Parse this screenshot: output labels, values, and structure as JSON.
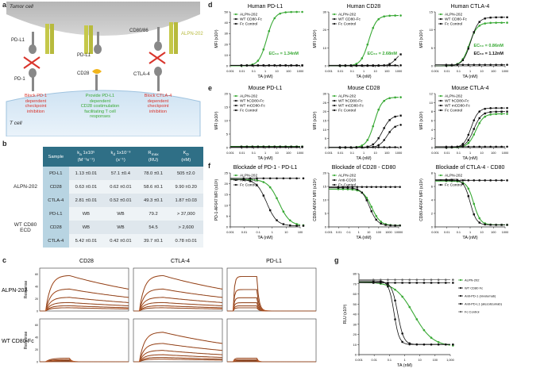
{
  "panel_letters": {
    "a": "a",
    "b": "b",
    "c": "c",
    "d": "d",
    "e": "e",
    "f": "f",
    "g": "g"
  },
  "panel_a": {
    "tumor_cell": "Tumor cell",
    "t_cell": "T cell",
    "pdl1_left": "PD-L1",
    "pd1": "PD-1",
    "pdl1_mid": "PD-L1",
    "cd28": "CD28",
    "cd8086": "CD80/86",
    "ctla4": "CTLA-4",
    "alpn202": "ALPN-202",
    "caption_left": [
      "Block PD-1",
      "dependent",
      "checkpoint",
      "inhibition"
    ],
    "caption_mid": [
      "Provide PD-L1",
      "dependent",
      "CD28 costimulation",
      "facilitating T cell",
      "responses"
    ],
    "caption_right": [
      "Block CTLA-4",
      "dependent",
      "checkpoint",
      "inhibition"
    ]
  },
  "panel_b": {
    "headers": [
      "Sample",
      "ka 1x10^5 (M-1s-1)",
      "kd 1x10^-3 (s-1)",
      "Rmax (RU)",
      "KD (nM)"
    ],
    "header_main": [
      "",
      "k",
      "k",
      "R",
      "K"
    ],
    "header_sub": [
      "",
      "a",
      "d",
      "max",
      "D"
    ],
    "header_extra": [
      "Sample",
      "1x10⁵",
      "1x10⁻³",
      "",
      ""
    ],
    "header_unit": [
      "",
      "(M⁻¹s⁻¹)",
      "(s⁻¹)",
      "(RU)",
      "(nM)"
    ],
    "groups": [
      {
        "name": "ALPN-202",
        "rows": [
          [
            "PD-L1",
            "1.13 ±0.01",
            "57.1 ±0.4",
            "78.0 ±0.1",
            "505 ±2.0"
          ],
          [
            "CD28",
            "0.63 ±0.01",
            "0.62 ±0.01",
            "58.6 ±0.1",
            "9.90 ±0.20"
          ],
          [
            "CTLA-4",
            "2.81 ±0.01",
            "0.52 ±0.01",
            "49.3 ±0.1",
            "1.87 ±0.03"
          ]
        ]
      },
      {
        "name_lines": [
          "WT CD80",
          "ECD"
        ],
        "rows": [
          [
            "PD-L1",
            "WB",
            "WB",
            "79.2",
            "> 37,000"
          ],
          [
            "CD28",
            "WB",
            "WB",
            "54.5",
            "> 2,600"
          ],
          [
            "CTLA-4",
            "5.42 ±0.01",
            "0.42 ±0.01",
            "39.7 ±0.1",
            "0.78 ±0.01"
          ]
        ]
      }
    ]
  },
  "panel_c": {
    "col_titles": [
      "CD28",
      "CTLA-4",
      "PD-L1"
    ],
    "row_titles": [
      "ALPN-202",
      "WT CD80-Fc"
    ],
    "ylabel": "Response",
    "yticks": [
      "0",
      "10",
      "20",
      "30",
      "40",
      "50",
      "60",
      "70"
    ],
    "xticks": [
      "0",
      "100",
      "200",
      "300",
      "400",
      "500",
      "600",
      "700",
      "800",
      "900"
    ]
  },
  "colors": {
    "green": "#39a935",
    "black": "#111111",
    "gray": "#666666",
    "orange": "#e0682b",
    "tableHead": "#2f6f86",
    "tableRowA": "#dfe7ed",
    "tableRowB": "#eef3f6",
    "cellFill": "#b8d4e2"
  },
  "chart_data": [
    {
      "id": "d1",
      "type": "line",
      "title": "Human PD-L1",
      "xlabel": "TA (nM)",
      "ylabel": "MFI (x10³)",
      "xscale": "log",
      "xticks": [
        "0.001",
        "0.01",
        "0.1",
        "1",
        "10",
        "100",
        "1000"
      ],
      "yticks": [
        "0",
        "10",
        "20",
        "30",
        "40",
        "50"
      ],
      "ylim": [
        0,
        50
      ],
      "legend": [
        "ALPN-202",
        "WT CD80-Fc",
        "Fc Control"
      ],
      "annotations": [
        {
          "text": "EC₅₀ = 1.34nM",
          "color": "green"
        }
      ],
      "series": [
        {
          "name": "ALPN-202",
          "ec50": 1.34,
          "top": 50,
          "hill": 1.3,
          "color": "green"
        },
        {
          "name": "WT CD80-Fc",
          "flat": 0.5,
          "color": "black"
        },
        {
          "name": "Fc Control",
          "flat": 0.3,
          "color": "black"
        }
      ]
    },
    {
      "id": "d2",
      "type": "line",
      "title": "Human CD28",
      "xlabel": "TA (nM)",
      "ylabel": "MFI (x10³)",
      "xscale": "log",
      "xticks": [
        "0.001",
        "0.01",
        "0.1",
        "1",
        "10",
        "100",
        "1000"
      ],
      "yticks": [
        "0",
        "10",
        "20",
        "30"
      ],
      "ylim": [
        0,
        30
      ],
      "legend": [
        "ALPN-202",
        "WT CD80-Fc",
        "Fc Control"
      ],
      "annotations": [
        {
          "text": "EC₅₀ = 2.68nM",
          "color": "green"
        }
      ],
      "series": [
        {
          "name": "ALPN-202",
          "ec50": 2.68,
          "top": 28,
          "hill": 1.3,
          "color": "green"
        },
        {
          "name": "WT CD80-Fc",
          "ec50": 600,
          "top": 8,
          "hill": 1.5,
          "color": "black"
        },
        {
          "name": "Fc Control",
          "flat": 0.3,
          "color": "black"
        }
      ]
    },
    {
      "id": "d3",
      "type": "line",
      "title": "Human CTLA-4",
      "xlabel": "TA (nM)",
      "ylabel": "MFI (x10³)",
      "xscale": "log",
      "xticks": [
        "0.001",
        "0.01",
        "0.1",
        "1",
        "10",
        "100",
        "1000"
      ],
      "yticks": [
        "0",
        "5",
        "10",
        "15"
      ],
      "ylim": [
        0,
        15
      ],
      "legend": [
        "ALPN-202",
        "WT CD80-Fc",
        "Fc Control"
      ],
      "annotations": [
        {
          "text": "EC₅₀ = 1.12nM",
          "color": "black"
        },
        {
          "text": "EC₅₀ = 0.86nM",
          "color": "green"
        }
      ],
      "series": [
        {
          "name": "ALPN-202",
          "ec50": 0.86,
          "top": 12,
          "hill": 1.3,
          "color": "green"
        },
        {
          "name": "WT CD80-Fc",
          "ec50": 1.12,
          "top": 13.5,
          "hill": 1.3,
          "color": "black"
        },
        {
          "name": "Fc Control",
          "flat": 0.3,
          "color": "black"
        }
      ]
    },
    {
      "id": "e1",
      "type": "line",
      "title": "Mouse PD-L1",
      "xlabel": "TA (nM)",
      "ylabel": "MFI (x10³)",
      "xscale": "log",
      "xticks": [
        "0.001",
        "0.01",
        "0.1",
        "1",
        "10",
        "100",
        "1000"
      ],
      "yticks": [
        "0",
        "5",
        "10",
        "15",
        "20"
      ],
      "ylim": [
        0,
        20
      ],
      "legend": [
        "ALPN-202",
        "WT hCD80-Fc",
        "WT mCD80-Fc",
        "Fc Control"
      ],
      "series": [
        {
          "name": "ALPN-202",
          "flat": 0.4,
          "color": "green"
        },
        {
          "name": "WT hCD80-Fc",
          "flat": 0.3,
          "color": "black"
        },
        {
          "name": "WT mCD80-Fc",
          "flat": 0.2,
          "color": "black"
        },
        {
          "name": "Fc Control",
          "flat": 0.2,
          "color": "black"
        }
      ]
    },
    {
      "id": "e2",
      "type": "line",
      "title": "Mouse CD28",
      "xlabel": "TA (nM)",
      "ylabel": "MFI (x10³)",
      "xscale": "log",
      "xticks": [
        "0.001",
        "0.01",
        "0.1",
        "1",
        "10",
        "100",
        "1000"
      ],
      "yticks": [
        "0",
        "5",
        "10",
        "15",
        "20",
        "25",
        "30"
      ],
      "ylim": [
        0,
        30
      ],
      "legend": [
        "ALPN-202",
        "WT hCD80-Fc",
        "WT mCD80-Fc",
        "Fc Control"
      ],
      "series": [
        {
          "name": "ALPN-202",
          "ec50": 8,
          "top": 28,
          "hill": 1.3,
          "color": "green"
        },
        {
          "name": "WT hCD80-Fc",
          "ec50": 40,
          "top": 18,
          "hill": 1.2,
          "color": "black"
        },
        {
          "name": "WT mCD80-Fc",
          "ec50": 100,
          "top": 13,
          "hill": 1.3,
          "color": "black"
        },
        {
          "name": "Fc Control",
          "flat": 0.2,
          "color": "black"
        }
      ]
    },
    {
      "id": "e3",
      "type": "line",
      "title": "Mouse CTLA-4",
      "xlabel": "TA (nM)",
      "ylabel": "MFI (x10³)",
      "xscale": "log",
      "xticks": [
        "0.001",
        "0.01",
        "0.1",
        "1",
        "10",
        "100",
        "1000"
      ],
      "yticks": [
        "0",
        "2",
        "4",
        "6",
        "8",
        "10",
        "12"
      ],
      "ylim": [
        0,
        12
      ],
      "legend": [
        "ALPN-202",
        "WT hCD80-Fc",
        "WT mCD80-Fc",
        "Fc Control"
      ],
      "series": [
        {
          "name": "ALPN-202",
          "ec50": 3,
          "top": 7.5,
          "hill": 1.3,
          "color": "green"
        },
        {
          "name": "WT hCD80-Fc",
          "ec50": 2,
          "top": 8,
          "hill": 1.3,
          "color": "black"
        },
        {
          "name": "WT mCD80-Fc",
          "ec50": 1.2,
          "top": 8.8,
          "hill": 1.4,
          "color": "black"
        },
        {
          "name": "Fc Control",
          "flat": 0.2,
          "color": "black"
        }
      ]
    },
    {
      "id": "f1",
      "type": "line",
      "title": "Blockade of PD-1 - PD-L1",
      "xlabel": "TA (nM)",
      "ylabel": "PD-1-AF647 MFI (x10³)",
      "xscale": "log",
      "xticks": [
        "0.001",
        "0.01",
        "0.1",
        "1",
        "10",
        "100"
      ],
      "yticks": [
        "0",
        "5",
        "10",
        "15",
        "20",
        "25"
      ],
      "ylim": [
        0,
        25
      ],
      "legend": [
        "ALPN-202",
        "Anti-PD-L1",
        "Fc Control"
      ],
      "series": [
        {
          "name": "ALPN-202",
          "ic50": 3,
          "top": 22,
          "bottom": 0.5,
          "hill": 1.1,
          "color": "green"
        },
        {
          "name": "Anti-PD-L1",
          "ic50": 0.4,
          "top": 22,
          "bottom": 0.5,
          "hill": 1.2,
          "color": "black"
        },
        {
          "name": "Fc Control",
          "flat": 22.5,
          "color": "black"
        }
      ]
    },
    {
      "id": "f2",
      "type": "line",
      "title": "Blockade of CD28 - CD80",
      "xlabel": "TA (nM)",
      "ylabel": "CD80-AF647 MFI (x10³)",
      "xscale": "log",
      "xticks": [
        "0.001",
        "0.01",
        "0.1",
        "1",
        "10",
        "100",
        "1000",
        "10000"
      ],
      "yticks": [
        "0",
        "5",
        "10",
        "15",
        "20"
      ],
      "ylim": [
        0,
        20
      ],
      "legend": [
        "ALPN-202",
        "Anti-CD28",
        "Fc Control"
      ],
      "series": [
        {
          "name": "ALPN-202",
          "ic50": 20,
          "top": 14,
          "bottom": 0.5,
          "hill": 1.0,
          "color": "green"
        },
        {
          "name": "Anti-CD28",
          "ic50": 12,
          "top": 14.5,
          "bottom": 0.5,
          "hill": 1.1,
          "color": "black"
        },
        {
          "name": "Fc Control",
          "flat": 14.8,
          "color": "black"
        }
      ]
    },
    {
      "id": "f3",
      "type": "line",
      "title": "Blockade of CTLA-4 - CD80",
      "xlabel": "TA (nM)",
      "ylabel": "CD80-AF647 MFI (x10³)",
      "xscale": "log",
      "xticks": [
        "0.001",
        "0.01",
        "0.1",
        "1",
        "10",
        "100",
        "1000"
      ],
      "yticks": [
        "0",
        "2",
        "4",
        "6",
        "8"
      ],
      "ylim": [
        0,
        8
      ],
      "legend": [
        "ALPN-202",
        "Anti-CTLA-4",
        "Fc Control"
      ],
      "series": [
        {
          "name": "ALPN-202",
          "ic50": 2,
          "top": 6.8,
          "bottom": 0.3,
          "hill": 1.5,
          "color": "green"
        },
        {
          "name": "Anti-CTLA-4",
          "ic50": 1,
          "top": 7,
          "bottom": 0.3,
          "hill": 1.6,
          "color": "black"
        },
        {
          "name": "Fc Control",
          "flat": 6.9,
          "color": "black"
        }
      ]
    },
    {
      "id": "g",
      "type": "line",
      "ylabel": "RLU (x10³)",
      "xlabel": "TA (nM)",
      "xscale": "log",
      "xticks": [
        "0.001",
        "0.01",
        "0.1",
        "1",
        "10",
        "100",
        "1,000"
      ],
      "yticks": [
        "0",
        "10",
        "20",
        "30",
        "40",
        "50",
        "60",
        "70",
        "80"
      ],
      "ylim": [
        0,
        80
      ],
      "legend": [
        "ALPN-202",
        "WT CD80 Fc",
        "Anti-PD-1 (nivolumab)",
        "Anti-PD-L1 (atezolizumab)",
        "Fc Control"
      ],
      "series": [
        {
          "name": "ALPN-202",
          "ic50": 4,
          "top": 72,
          "bottom": 8,
          "hill": 0.7,
          "color": "green"
        },
        {
          "name": "WT CD80 Fc",
          "flat": 71,
          "color": "black"
        },
        {
          "name": "Anti-PD-1 (nivolumab)",
          "ic50": 0.35,
          "top": 72,
          "bottom": 10,
          "hill": 2.2,
          "color": "black"
        },
        {
          "name": "Anti-PD-L1 (atezolizumab)",
          "ic50": 0.2,
          "top": 73,
          "bottom": 10,
          "hill": 2.5,
          "color": "black"
        },
        {
          "name": "Fc Control",
          "flat": 74,
          "color": "gray"
        }
      ]
    }
  ]
}
